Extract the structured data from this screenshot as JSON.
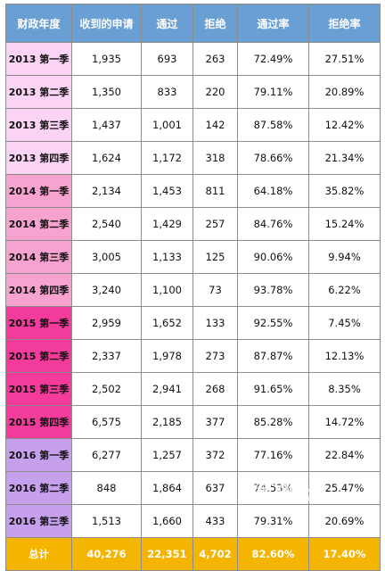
{
  "table": {
    "headers": [
      "财政年度",
      "收到的申请",
      "通过",
      "拒绝",
      "通过率",
      "拒绝率"
    ],
    "rows": [
      [
        "2013 第一季",
        "1,935",
        "693",
        "263",
        "72.49%",
        "27.51%"
      ],
      [
        "2013 第二季",
        "1,350",
        "833",
        "220",
        "79.11%",
        "20.89%"
      ],
      [
        "2013 第三季",
        "1,437",
        "1,001",
        "142",
        "87.58%",
        "12.42%"
      ],
      [
        "2013 第四季",
        "1,624",
        "1,172",
        "318",
        "78.66%",
        "21.34%"
      ],
      [
        "2014 第一季",
        "2,134",
        "1,453",
        "811",
        "64.18%",
        "35.82%"
      ],
      [
        "2014 第二季",
        "2,540",
        "1,429",
        "257",
        "84.76%",
        "15.24%"
      ],
      [
        "2014 第三季",
        "3,005",
        "1,133",
        "125",
        "90.06%",
        "9.94%"
      ],
      [
        "2014 第四季",
        "3,240",
        "1,100",
        "73",
        "93.78%",
        "6.22%"
      ],
      [
        "2015 第一季",
        "2,959",
        "1,652",
        "133",
        "92.55%",
        "7.45%"
      ],
      [
        "2015 第二季",
        "2,337",
        "1,978",
        "273",
        "87.87%",
        "12.13%"
      ],
      [
        "2015 第三季",
        "2,502",
        "2,941",
        "268",
        "91.65%",
        "8.35%"
      ],
      [
        "2015 第四季",
        "6,575",
        "2,185",
        "377",
        "85.28%",
        "14.72%"
      ],
      [
        "2016 第一季",
        "6,277",
        "1,257",
        "372",
        "77.16%",
        "22.84%"
      ],
      [
        "2016 第二季",
        "848",
        "1,864",
        "637",
        "74.53%",
        "25.47%"
      ],
      [
        "2016 第三季",
        "1,513",
        "1,660",
        "433",
        "79.31%",
        "20.69%"
      ]
    ],
    "total": [
      "总计",
      "40,276",
      "22,351",
      "4,702",
      "82.60%",
      "17.40%"
    ]
  },
  "colors": {
    "header_bg": "#6a9fd4",
    "year_2013": "#fbd3f4",
    "year_2014": "#f7a3cf",
    "year_2015": "#f23b9a",
    "year_2016": "#c6a0ec",
    "total_bg": "#f5b400"
  },
  "watermark": "海外出"
}
